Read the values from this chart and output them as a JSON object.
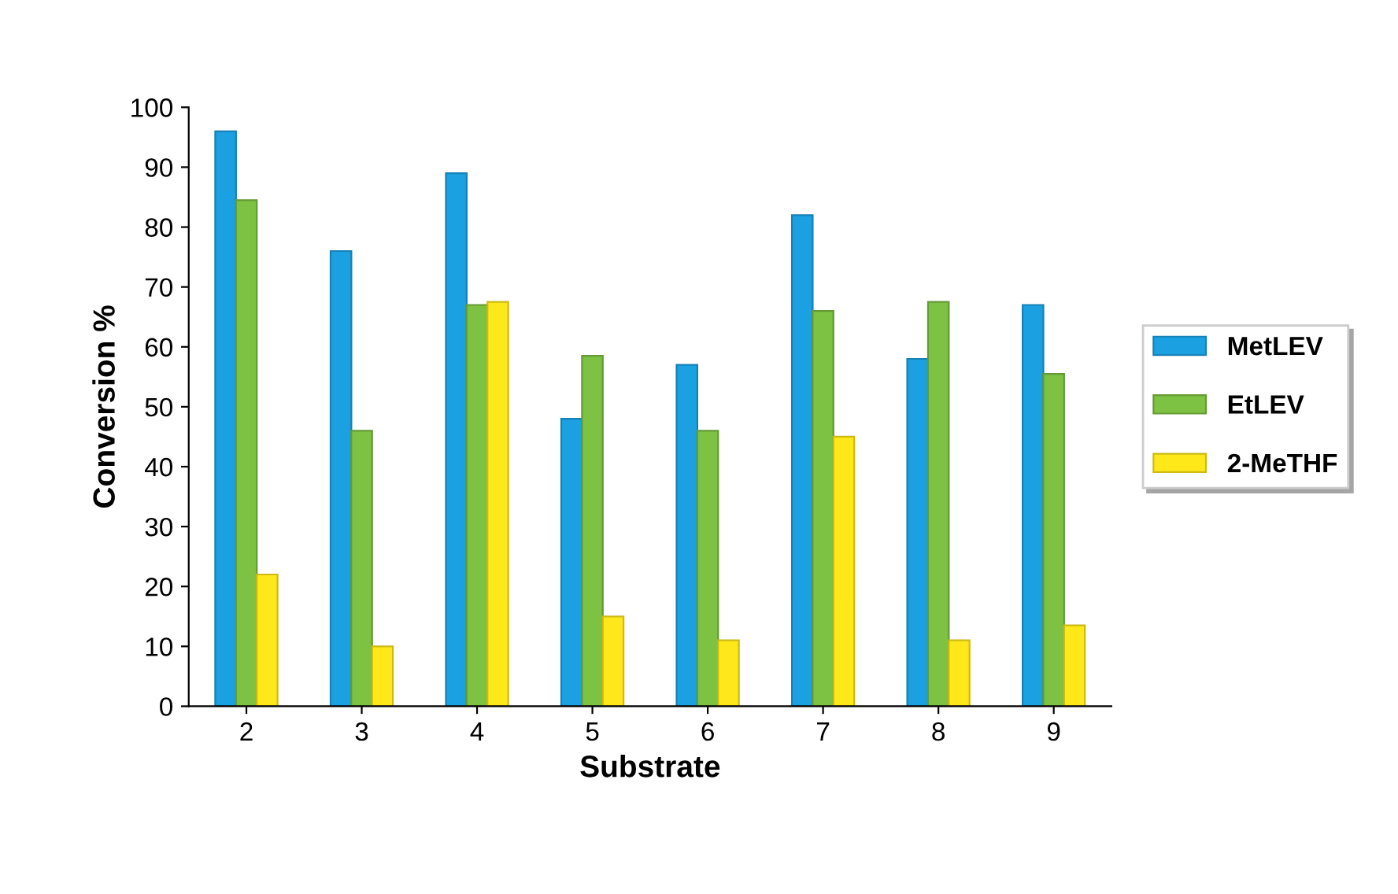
{
  "chart_data": {
    "type": "bar",
    "xlabel": "Substrate",
    "ylabel": "Conversion %",
    "categories": [
      "2",
      "3",
      "4",
      "5",
      "6",
      "7",
      "8",
      "9"
    ],
    "series": [
      {
        "name": "MetLEV",
        "color": "#1ba1e2",
        "values": [
          96,
          76,
          89,
          48,
          57,
          82,
          58,
          67
        ]
      },
      {
        "name": "EtLEV",
        "color": "#7dc242",
        "values": [
          84.5,
          46,
          67,
          58.5,
          46,
          66,
          67.5,
          55.5
        ]
      },
      {
        "name": "2-MeTHF",
        "color": "#ffe81a",
        "values": [
          22,
          10,
          67.5,
          15,
          11,
          45,
          11,
          13.5
        ]
      }
    ],
    "ylim": [
      0,
      100
    ],
    "yticks": [
      0,
      10,
      20,
      30,
      40,
      50,
      60,
      70,
      80,
      90,
      100
    ],
    "grid": false,
    "legend": "right"
  }
}
